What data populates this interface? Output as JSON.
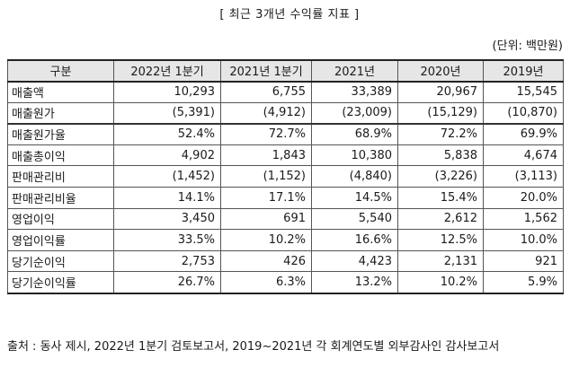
{
  "title": "[ 최근 3개년 수익률 지표 ]",
  "unit": "(단위: 백만원)",
  "table": {
    "headers": [
      "구분",
      "2022년 1분기",
      "2021년 1분기",
      "2021년",
      "2020년",
      "2019년"
    ],
    "rows": [
      {
        "label": "매출액",
        "values": [
          "10,293",
          "6,755",
          "33,389",
          "20,967",
          "15,545"
        ]
      },
      {
        "label": "매출원가",
        "values": [
          "(5,391)",
          "(4,912)",
          "(23,009)",
          "(15,129)",
          "(10,870)"
        ]
      },
      {
        "label": "매출원가율",
        "values": [
          "52.4%",
          "72.7%",
          "68.9%",
          "72.2%",
          "69.9%"
        ]
      },
      {
        "label": "매출총이익",
        "values": [
          "4,902",
          "1,843",
          "10,380",
          "5,838",
          "4,674"
        ]
      },
      {
        "label": "판매관리비",
        "values": [
          "(1,452)",
          "(1,152)",
          "(4,840)",
          "(3,226)",
          "(3,113)"
        ]
      },
      {
        "label": "판매관리비율",
        "values": [
          "14.1%",
          "17.1%",
          "14.5%",
          "15.4%",
          "20.0%"
        ]
      },
      {
        "label": "영업이익",
        "values": [
          "3,450",
          "691",
          "5,540",
          "2,612",
          "1,562"
        ]
      },
      {
        "label": "영업이익률",
        "values": [
          "33.5%",
          "10.2%",
          "16.6%",
          "12.5%",
          "10.0%"
        ]
      },
      {
        "label": "당기순이익",
        "values": [
          "2,753",
          "426",
          "4,423",
          "2,131",
          "921"
        ]
      },
      {
        "label": "당기순이익률",
        "values": [
          "26.7%",
          "6.3%",
          "13.2%",
          "10.2%",
          "5.9%"
        ]
      }
    ]
  },
  "source": "출처 : 동사 제시, 2022년 1분기 검토보고서, 2019~2021년 각 회계연도별 외부감사인 감사보고서"
}
